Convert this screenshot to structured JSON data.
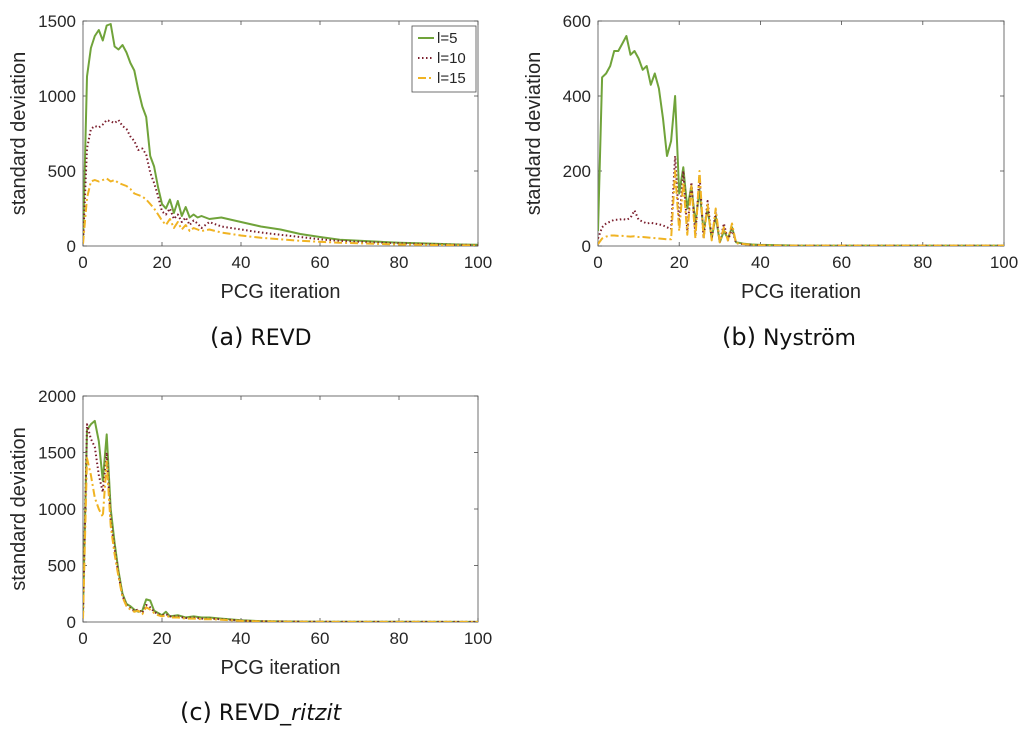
{
  "colors": {
    "l5": "#70a33a",
    "l10": "#7b1f2e",
    "l15": "#f0b323",
    "axis": "#262626"
  },
  "captions": [
    {
      "prefix": "(a)",
      "name": "REVD",
      "italic": ""
    },
    {
      "prefix": "(b)",
      "name": "Nyström",
      "italic": ""
    },
    {
      "prefix": "(c)",
      "name": "REVD_",
      "italic": "ritzit"
    }
  ],
  "chart_data": [
    {
      "type": "line",
      "xlabel": "PCG iteration",
      "ylabel": "standard deviation",
      "xlim": [
        0,
        100
      ],
      "ylim": [
        0,
        1500
      ],
      "xticks": [
        0,
        20,
        40,
        60,
        80,
        100
      ],
      "yticks": [
        0,
        500,
        1000,
        1500
      ],
      "legend": {
        "placement": "top-right",
        "entries": [
          "l=5",
          "l=10",
          "l=15"
        ]
      },
      "series": [
        {
          "name": "l=5",
          "style": "solid",
          "colorKey": "l5",
          "x": [
            0,
            1,
            2,
            3,
            4,
            5,
            6,
            7,
            8,
            9,
            10,
            11,
            12,
            13,
            14,
            15,
            16,
            17,
            18,
            19,
            20,
            21,
            22,
            23,
            24,
            25,
            26,
            27,
            28,
            29,
            30,
            32,
            35,
            40,
            45,
            50,
            55,
            60,
            65,
            70,
            75,
            80,
            85,
            90,
            95,
            100
          ],
          "y": [
            30,
            1130,
            1320,
            1400,
            1440,
            1370,
            1470,
            1480,
            1330,
            1310,
            1340,
            1290,
            1220,
            1170,
            1040,
            930,
            860,
            600,
            530,
            390,
            280,
            250,
            310,
            220,
            300,
            200,
            260,
            190,
            210,
            190,
            200,
            180,
            190,
            160,
            130,
            110,
            80,
            60,
            42,
            35,
            28,
            22,
            18,
            14,
            10,
            8
          ]
        },
        {
          "name": "l=10",
          "style": "dotted",
          "colorKey": "l10",
          "x": [
            0,
            1,
            2,
            3,
            4,
            5,
            6,
            7,
            8,
            9,
            10,
            11,
            12,
            13,
            14,
            15,
            16,
            17,
            18,
            19,
            20,
            21,
            22,
            23,
            24,
            25,
            26,
            27,
            28,
            29,
            30,
            32,
            35,
            40,
            45,
            50,
            55,
            60,
            65,
            70,
            75,
            80,
            85,
            90,
            95,
            100
          ],
          "y": [
            20,
            650,
            780,
            800,
            790,
            810,
            840,
            830,
            820,
            840,
            800,
            780,
            730,
            700,
            640,
            650,
            610,
            490,
            420,
            330,
            230,
            210,
            250,
            180,
            210,
            160,
            190,
            140,
            170,
            150,
            120,
            160,
            130,
            110,
            90,
            75,
            60,
            45,
            35,
            28,
            22,
            18,
            14,
            10,
            8,
            6
          ]
        },
        {
          "name": "l=15",
          "style": "dashdot",
          "colorKey": "l15",
          "x": [
            0,
            1,
            2,
            3,
            4,
            5,
            6,
            7,
            8,
            9,
            10,
            11,
            12,
            13,
            14,
            15,
            16,
            17,
            18,
            19,
            20,
            21,
            22,
            23,
            24,
            25,
            26,
            27,
            28,
            29,
            30,
            32,
            35,
            40,
            45,
            50,
            55,
            60,
            65,
            70,
            75,
            80,
            85,
            90,
            95,
            100
          ],
          "y": [
            15,
            320,
            430,
            440,
            430,
            440,
            450,
            430,
            440,
            420,
            410,
            400,
            380,
            350,
            340,
            330,
            310,
            280,
            250,
            210,
            170,
            140,
            180,
            120,
            160,
            110,
            140,
            100,
            120,
            110,
            100,
            110,
            90,
            70,
            55,
            45,
            35,
            28,
            22,
            18,
            14,
            10,
            8,
            6,
            5,
            4
          ]
        }
      ]
    },
    {
      "type": "line",
      "xlabel": "PCG iteration",
      "ylabel": "standard deviation",
      "xlim": [
        0,
        100
      ],
      "ylim": [
        0,
        600
      ],
      "xticks": [
        0,
        20,
        40,
        60,
        80,
        100
      ],
      "yticks": [
        0,
        200,
        400,
        600
      ],
      "series": [
        {
          "name": "l=5",
          "style": "solid",
          "colorKey": "l5",
          "x": [
            0,
            1,
            2,
            3,
            4,
            5,
            6,
            7,
            8,
            9,
            10,
            11,
            12,
            13,
            14,
            15,
            16,
            17,
            18,
            19,
            20,
            21,
            22,
            23,
            24,
            25,
            26,
            27,
            28,
            29,
            30,
            31,
            32,
            33,
            34,
            35,
            36,
            38,
            40,
            45,
            50,
            60,
            80,
            100
          ],
          "y": [
            40,
            450,
            460,
            480,
            520,
            520,
            540,
            560,
            510,
            520,
            500,
            470,
            480,
            430,
            460,
            420,
            340,
            240,
            280,
            400,
            140,
            210,
            100,
            160,
            60,
            150,
            40,
            100,
            20,
            80,
            10,
            40,
            20,
            50,
            10,
            8,
            6,
            4,
            3,
            2,
            1,
            1,
            1,
            1
          ]
        },
        {
          "name": "l=10",
          "style": "dotted",
          "colorKey": "l10",
          "x": [
            0,
            1,
            2,
            3,
            4,
            5,
            6,
            7,
            8,
            9,
            10,
            11,
            12,
            13,
            14,
            15,
            16,
            17,
            18,
            19,
            20,
            21,
            22,
            23,
            24,
            25,
            26,
            27,
            28,
            29,
            30,
            31,
            32,
            33,
            34,
            35,
            36,
            38,
            40,
            45,
            50,
            60,
            80,
            100
          ],
          "y": [
            20,
            50,
            60,
            65,
            70,
            70,
            72,
            70,
            75,
            95,
            70,
            65,
            60,
            62,
            60,
            58,
            55,
            50,
            45,
            240,
            60,
            200,
            40,
            170,
            30,
            190,
            20,
            120,
            20,
            90,
            10,
            60,
            15,
            45,
            8,
            6,
            5,
            3,
            2,
            1,
            1,
            1,
            1,
            1
          ]
        },
        {
          "name": "l=15",
          "style": "dashdot",
          "colorKey": "l15",
          "x": [
            0,
            1,
            2,
            3,
            4,
            5,
            6,
            7,
            8,
            9,
            10,
            11,
            12,
            13,
            14,
            15,
            16,
            17,
            18,
            19,
            20,
            21,
            22,
            23,
            24,
            25,
            26,
            27,
            28,
            29,
            30,
            31,
            32,
            33,
            34,
            35,
            36,
            38,
            40,
            45,
            50,
            60,
            80,
            100
          ],
          "y": [
            5,
            20,
            25,
            28,
            28,
            27,
            27,
            26,
            25,
            26,
            24,
            24,
            23,
            22,
            21,
            20,
            19,
            18,
            18,
            200,
            40,
            170,
            30,
            160,
            20,
            200,
            20,
            110,
            15,
            100,
            10,
            50,
            15,
            60,
            8,
            6,
            5,
            3,
            2,
            1,
            1,
            1,
            1,
            1
          ]
        }
      ]
    },
    {
      "type": "line",
      "xlabel": "PCG iteration",
      "ylabel": "standard deviation",
      "xlim": [
        0,
        100
      ],
      "ylim": [
        0,
        2000
      ],
      "xticks": [
        0,
        20,
        40,
        60,
        80,
        100
      ],
      "yticks": [
        0,
        500,
        1000,
        1500,
        2000
      ],
      "series": [
        {
          "name": "l=5",
          "style": "solid",
          "colorKey": "l5",
          "x": [
            0,
            1,
            2,
            3,
            4,
            5,
            6,
            7,
            8,
            9,
            10,
            11,
            12,
            13,
            14,
            15,
            16,
            17,
            18,
            19,
            20,
            21,
            22,
            24,
            26,
            28,
            30,
            32,
            35,
            40,
            45,
            50,
            60,
            80,
            100
          ],
          "y": [
            100,
            1700,
            1750,
            1780,
            1600,
            1250,
            1660,
            1000,
            700,
            450,
            250,
            160,
            140,
            110,
            90,
            100,
            200,
            190,
            100,
            80,
            60,
            90,
            50,
            60,
            40,
            50,
            40,
            40,
            30,
            15,
            8,
            5,
            3,
            2,
            1
          ]
        },
        {
          "name": "l=10",
          "style": "dotted",
          "colorKey": "l10",
          "x": [
            0,
            1,
            2,
            3,
            4,
            5,
            6,
            7,
            8,
            9,
            10,
            11,
            12,
            13,
            14,
            15,
            16,
            17,
            18,
            19,
            20,
            21,
            22,
            24,
            26,
            28,
            30,
            32,
            35,
            40,
            45,
            50,
            60,
            80,
            100
          ],
          "y": [
            50,
            1750,
            1620,
            1550,
            1300,
            1150,
            1500,
            900,
            650,
            420,
            230,
            150,
            120,
            100,
            110,
            80,
            150,
            130,
            90,
            70,
            60,
            70,
            50,
            50,
            35,
            40,
            30,
            30,
            25,
            12,
            6,
            4,
            2,
            1,
            1
          ]
        },
        {
          "name": "l=15",
          "style": "dashdot",
          "colorKey": "l15",
          "x": [
            0,
            1,
            2,
            3,
            4,
            5,
            6,
            7,
            8,
            9,
            10,
            11,
            12,
            13,
            14,
            15,
            16,
            17,
            18,
            19,
            20,
            21,
            22,
            24,
            26,
            28,
            30,
            32,
            35,
            40,
            45,
            50,
            60,
            80,
            100
          ],
          "y": [
            30,
            1450,
            1300,
            1100,
            1000,
            930,
            1420,
            850,
            600,
            400,
            220,
            140,
            110,
            90,
            100,
            70,
            130,
            110,
            80,
            60,
            50,
            60,
            40,
            40,
            30,
            30,
            25,
            25,
            20,
            10,
            5,
            3,
            2,
            1,
            1
          ]
        }
      ]
    }
  ]
}
